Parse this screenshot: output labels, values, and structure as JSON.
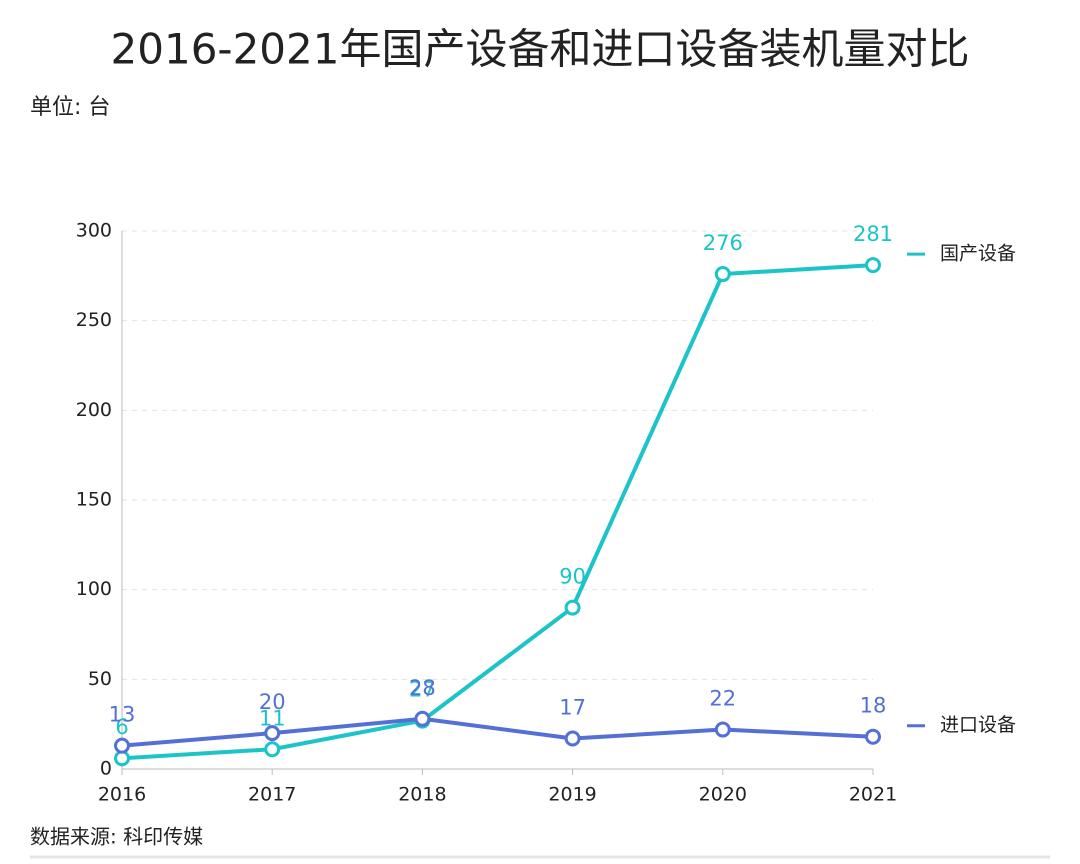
{
  "chart_data": {
    "type": "line",
    "title": "2016-2021年国产设备和进口设备装机量对比",
    "subtitle": "单位: 台",
    "source": "数据来源: 科印传媒",
    "categories": [
      "2016",
      "2017",
      "2018",
      "2019",
      "2020",
      "2021"
    ],
    "series": [
      {
        "name": "国产设备",
        "color": "#1cc4c9",
        "values": [
          6,
          11,
          27,
          90,
          276,
          281
        ]
      },
      {
        "name": "进口设备",
        "color": "#5470d6",
        "values": [
          13,
          20,
          28,
          17,
          22,
          18
        ]
      }
    ],
    "ylim": [
      0,
      300
    ],
    "yticks": [
      0,
      50,
      100,
      150,
      200,
      250,
      300
    ],
    "grid": true
  }
}
